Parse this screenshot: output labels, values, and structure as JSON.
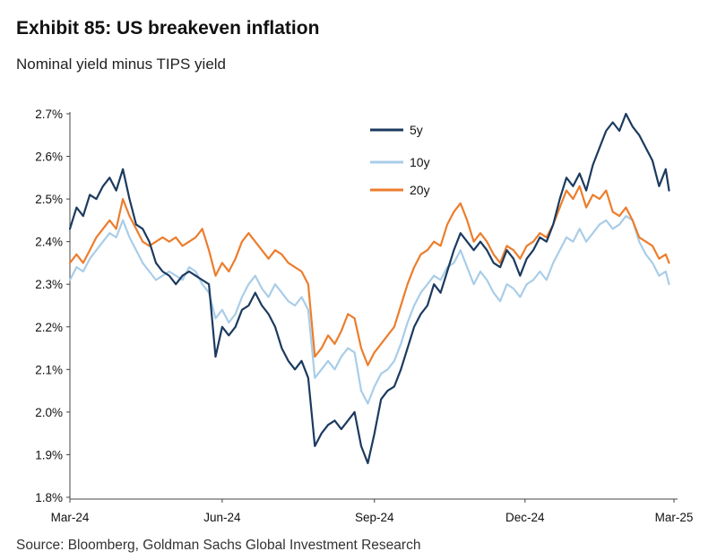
{
  "header": {
    "title": "Exhibit 85: US breakeven inflation",
    "subtitle": "Nominal yield minus TIPS yield"
  },
  "footer": {
    "source": "Source: Bloomberg, Goldman Sachs Global Investment Research"
  },
  "chart_data": {
    "type": "line",
    "title": "Exhibit 85: US breakeven inflation",
    "subtitle": "Nominal yield minus TIPS yield",
    "xlabel": "",
    "ylabel": "",
    "x_tick_labels": [
      "Mar-24",
      "Jun-24",
      "Sep-24",
      "Dec-24",
      "Mar-25"
    ],
    "y_tick_labels": [
      "1.8%",
      "1.9%",
      "2.0%",
      "2.1%",
      "2.2%",
      "2.3%",
      "2.4%",
      "2.5%",
      "2.6%",
      "2.7%"
    ],
    "ylim": [
      1.8,
      2.7
    ],
    "xlim": [
      "2024-03-01",
      "2025-03-01"
    ],
    "grid": false,
    "legend_position": "top-center",
    "colors": {
      "5y": "#1b3a5f",
      "10y": "#a9cde8",
      "20y": "#ec7d2c"
    },
    "series": [
      {
        "name": "5y",
        "points": [
          [
            "2024-03-01",
            2.43
          ],
          [
            "2024-03-05",
            2.48
          ],
          [
            "2024-03-09",
            2.46
          ],
          [
            "2024-03-13",
            2.51
          ],
          [
            "2024-03-17",
            2.5
          ],
          [
            "2024-03-21",
            2.53
          ],
          [
            "2024-03-25",
            2.55
          ],
          [
            "2024-03-29",
            2.52
          ],
          [
            "2024-04-02",
            2.57
          ],
          [
            "2024-04-06",
            2.5
          ],
          [
            "2024-04-10",
            2.44
          ],
          [
            "2024-04-14",
            2.43
          ],
          [
            "2024-04-18",
            2.4
          ],
          [
            "2024-04-22",
            2.35
          ],
          [
            "2024-04-26",
            2.33
          ],
          [
            "2024-04-30",
            2.32
          ],
          [
            "2024-05-04",
            2.3
          ],
          [
            "2024-05-08",
            2.32
          ],
          [
            "2024-05-12",
            2.33
          ],
          [
            "2024-05-16",
            2.32
          ],
          [
            "2024-05-20",
            2.31
          ],
          [
            "2024-05-24",
            2.3
          ],
          [
            "2024-05-28",
            2.13
          ],
          [
            "2024-06-01",
            2.2
          ],
          [
            "2024-06-05",
            2.18
          ],
          [
            "2024-06-09",
            2.2
          ],
          [
            "2024-06-13",
            2.24
          ],
          [
            "2024-06-17",
            2.25
          ],
          [
            "2024-06-21",
            2.28
          ],
          [
            "2024-06-25",
            2.25
          ],
          [
            "2024-06-29",
            2.23
          ],
          [
            "2024-07-03",
            2.2
          ],
          [
            "2024-07-07",
            2.15
          ],
          [
            "2024-07-11",
            2.12
          ],
          [
            "2024-07-15",
            2.1
          ],
          [
            "2024-07-19",
            2.12
          ],
          [
            "2024-07-23",
            2.08
          ],
          [
            "2024-07-27",
            1.92
          ],
          [
            "2024-07-31",
            1.95
          ],
          [
            "2024-08-04",
            1.97
          ],
          [
            "2024-08-08",
            1.98
          ],
          [
            "2024-08-12",
            1.96
          ],
          [
            "2024-08-16",
            1.98
          ],
          [
            "2024-08-20",
            2.0
          ],
          [
            "2024-08-24",
            1.92
          ],
          [
            "2024-08-28",
            1.88
          ],
          [
            "2024-09-01",
            1.95
          ],
          [
            "2024-09-05",
            2.03
          ],
          [
            "2024-09-09",
            2.05
          ],
          [
            "2024-09-13",
            2.06
          ],
          [
            "2024-09-17",
            2.1
          ],
          [
            "2024-09-21",
            2.15
          ],
          [
            "2024-09-25",
            2.2
          ],
          [
            "2024-09-29",
            2.23
          ],
          [
            "2024-10-03",
            2.25
          ],
          [
            "2024-10-07",
            2.3
          ],
          [
            "2024-10-11",
            2.28
          ],
          [
            "2024-10-15",
            2.33
          ],
          [
            "2024-10-19",
            2.38
          ],
          [
            "2024-10-23",
            2.42
          ],
          [
            "2024-10-27",
            2.4
          ],
          [
            "2024-10-31",
            2.38
          ],
          [
            "2024-11-04",
            2.4
          ],
          [
            "2024-11-08",
            2.38
          ],
          [
            "2024-11-12",
            2.35
          ],
          [
            "2024-11-16",
            2.34
          ],
          [
            "2024-11-20",
            2.38
          ],
          [
            "2024-11-24",
            2.36
          ],
          [
            "2024-11-28",
            2.32
          ],
          [
            "2024-12-02",
            2.36
          ],
          [
            "2024-12-06",
            2.38
          ],
          [
            "2024-12-10",
            2.41
          ],
          [
            "2024-12-14",
            2.4
          ],
          [
            "2024-12-18",
            2.44
          ],
          [
            "2024-12-22",
            2.5
          ],
          [
            "2024-12-26",
            2.55
          ],
          [
            "2024-12-30",
            2.53
          ],
          [
            "2025-01-03",
            2.56
          ],
          [
            "2025-01-07",
            2.52
          ],
          [
            "2025-01-11",
            2.58
          ],
          [
            "2025-01-15",
            2.62
          ],
          [
            "2025-01-19",
            2.66
          ],
          [
            "2025-01-23",
            2.68
          ],
          [
            "2025-01-27",
            2.66
          ],
          [
            "2025-01-31",
            2.7
          ],
          [
            "2025-02-04",
            2.67
          ],
          [
            "2025-02-08",
            2.65
          ],
          [
            "2025-02-12",
            2.62
          ],
          [
            "2025-02-16",
            2.59
          ],
          [
            "2025-02-20",
            2.53
          ],
          [
            "2025-02-24",
            2.57
          ],
          [
            "2025-02-26",
            2.52
          ]
        ]
      },
      {
        "name": "10y",
        "points": [
          [
            "2024-03-01",
            2.31
          ],
          [
            "2024-03-05",
            2.34
          ],
          [
            "2024-03-09",
            2.33
          ],
          [
            "2024-03-13",
            2.36
          ],
          [
            "2024-03-17",
            2.38
          ],
          [
            "2024-03-21",
            2.4
          ],
          [
            "2024-03-25",
            2.42
          ],
          [
            "2024-03-29",
            2.41
          ],
          [
            "2024-04-02",
            2.45
          ],
          [
            "2024-04-06",
            2.41
          ],
          [
            "2024-04-10",
            2.38
          ],
          [
            "2024-04-14",
            2.35
          ],
          [
            "2024-04-18",
            2.33
          ],
          [
            "2024-04-22",
            2.31
          ],
          [
            "2024-04-26",
            2.32
          ],
          [
            "2024-04-30",
            2.33
          ],
          [
            "2024-05-04",
            2.32
          ],
          [
            "2024-05-08",
            2.31
          ],
          [
            "2024-05-12",
            2.34
          ],
          [
            "2024-05-16",
            2.33
          ],
          [
            "2024-05-20",
            2.3
          ],
          [
            "2024-05-24",
            2.28
          ],
          [
            "2024-05-28",
            2.22
          ],
          [
            "2024-06-01",
            2.24
          ],
          [
            "2024-06-05",
            2.21
          ],
          [
            "2024-06-09",
            2.23
          ],
          [
            "2024-06-13",
            2.27
          ],
          [
            "2024-06-17",
            2.3
          ],
          [
            "2024-06-21",
            2.32
          ],
          [
            "2024-06-25",
            2.29
          ],
          [
            "2024-06-29",
            2.27
          ],
          [
            "2024-07-03",
            2.3
          ],
          [
            "2024-07-07",
            2.28
          ],
          [
            "2024-07-11",
            2.26
          ],
          [
            "2024-07-15",
            2.25
          ],
          [
            "2024-07-19",
            2.27
          ],
          [
            "2024-07-23",
            2.24
          ],
          [
            "2024-07-27",
            2.08
          ],
          [
            "2024-07-31",
            2.1
          ],
          [
            "2024-08-04",
            2.12
          ],
          [
            "2024-08-08",
            2.1
          ],
          [
            "2024-08-12",
            2.13
          ],
          [
            "2024-08-16",
            2.15
          ],
          [
            "2024-08-20",
            2.14
          ],
          [
            "2024-08-24",
            2.05
          ],
          [
            "2024-08-28",
            2.02
          ],
          [
            "2024-09-01",
            2.06
          ],
          [
            "2024-09-05",
            2.09
          ],
          [
            "2024-09-09",
            2.1
          ],
          [
            "2024-09-13",
            2.12
          ],
          [
            "2024-09-17",
            2.16
          ],
          [
            "2024-09-21",
            2.21
          ],
          [
            "2024-09-25",
            2.25
          ],
          [
            "2024-09-29",
            2.28
          ],
          [
            "2024-10-03",
            2.3
          ],
          [
            "2024-10-07",
            2.32
          ],
          [
            "2024-10-11",
            2.31
          ],
          [
            "2024-10-15",
            2.34
          ],
          [
            "2024-10-19",
            2.35
          ],
          [
            "2024-10-23",
            2.38
          ],
          [
            "2024-10-27",
            2.34
          ],
          [
            "2024-10-31",
            2.3
          ],
          [
            "2024-11-04",
            2.33
          ],
          [
            "2024-11-08",
            2.31
          ],
          [
            "2024-11-12",
            2.28
          ],
          [
            "2024-11-16",
            2.26
          ],
          [
            "2024-11-20",
            2.3
          ],
          [
            "2024-11-24",
            2.29
          ],
          [
            "2024-11-28",
            2.27
          ],
          [
            "2024-12-02",
            2.3
          ],
          [
            "2024-12-06",
            2.31
          ],
          [
            "2024-12-10",
            2.33
          ],
          [
            "2024-12-14",
            2.31
          ],
          [
            "2024-12-18",
            2.35
          ],
          [
            "2024-12-22",
            2.38
          ],
          [
            "2024-12-26",
            2.41
          ],
          [
            "2024-12-30",
            2.4
          ],
          [
            "2025-01-03",
            2.43
          ],
          [
            "2025-01-07",
            2.4
          ],
          [
            "2025-01-11",
            2.42
          ],
          [
            "2025-01-15",
            2.44
          ],
          [
            "2025-01-19",
            2.45
          ],
          [
            "2025-01-23",
            2.43
          ],
          [
            "2025-01-27",
            2.44
          ],
          [
            "2025-01-31",
            2.46
          ],
          [
            "2025-02-04",
            2.45
          ],
          [
            "2025-02-08",
            2.4
          ],
          [
            "2025-02-12",
            2.37
          ],
          [
            "2025-02-16",
            2.35
          ],
          [
            "2025-02-20",
            2.32
          ],
          [
            "2025-02-24",
            2.33
          ],
          [
            "2025-02-26",
            2.3
          ]
        ]
      },
      {
        "name": "20y",
        "points": [
          [
            "2024-03-01",
            2.35
          ],
          [
            "2024-03-05",
            2.37
          ],
          [
            "2024-03-09",
            2.35
          ],
          [
            "2024-03-13",
            2.38
          ],
          [
            "2024-03-17",
            2.41
          ],
          [
            "2024-03-21",
            2.43
          ],
          [
            "2024-03-25",
            2.45
          ],
          [
            "2024-03-29",
            2.43
          ],
          [
            "2024-04-02",
            2.5
          ],
          [
            "2024-04-06",
            2.46
          ],
          [
            "2024-04-10",
            2.43
          ],
          [
            "2024-04-14",
            2.4
          ],
          [
            "2024-04-18",
            2.39
          ],
          [
            "2024-04-22",
            2.4
          ],
          [
            "2024-04-26",
            2.41
          ],
          [
            "2024-04-30",
            2.4
          ],
          [
            "2024-05-04",
            2.41
          ],
          [
            "2024-05-08",
            2.39
          ],
          [
            "2024-05-12",
            2.4
          ],
          [
            "2024-05-16",
            2.41
          ],
          [
            "2024-05-20",
            2.43
          ],
          [
            "2024-05-24",
            2.38
          ],
          [
            "2024-05-28",
            2.32
          ],
          [
            "2024-06-01",
            2.35
          ],
          [
            "2024-06-05",
            2.33
          ],
          [
            "2024-06-09",
            2.36
          ],
          [
            "2024-06-13",
            2.4
          ],
          [
            "2024-06-17",
            2.42
          ],
          [
            "2024-06-21",
            2.4
          ],
          [
            "2024-06-25",
            2.38
          ],
          [
            "2024-06-29",
            2.36
          ],
          [
            "2024-07-03",
            2.38
          ],
          [
            "2024-07-07",
            2.37
          ],
          [
            "2024-07-11",
            2.35
          ],
          [
            "2024-07-15",
            2.34
          ],
          [
            "2024-07-19",
            2.33
          ],
          [
            "2024-07-23",
            2.3
          ],
          [
            "2024-07-27",
            2.13
          ],
          [
            "2024-07-31",
            2.15
          ],
          [
            "2024-08-04",
            2.18
          ],
          [
            "2024-08-08",
            2.16
          ],
          [
            "2024-08-12",
            2.19
          ],
          [
            "2024-08-16",
            2.23
          ],
          [
            "2024-08-20",
            2.22
          ],
          [
            "2024-08-24",
            2.15
          ],
          [
            "2024-08-28",
            2.11
          ],
          [
            "2024-09-01",
            2.14
          ],
          [
            "2024-09-05",
            2.16
          ],
          [
            "2024-09-09",
            2.18
          ],
          [
            "2024-09-13",
            2.2
          ],
          [
            "2024-09-17",
            2.25
          ],
          [
            "2024-09-21",
            2.3
          ],
          [
            "2024-09-25",
            2.34
          ],
          [
            "2024-09-29",
            2.37
          ],
          [
            "2024-10-03",
            2.38
          ],
          [
            "2024-10-07",
            2.4
          ],
          [
            "2024-10-11",
            2.39
          ],
          [
            "2024-10-15",
            2.44
          ],
          [
            "2024-10-19",
            2.47
          ],
          [
            "2024-10-23",
            2.49
          ],
          [
            "2024-10-27",
            2.45
          ],
          [
            "2024-10-31",
            2.4
          ],
          [
            "2024-11-04",
            2.42
          ],
          [
            "2024-11-08",
            2.4
          ],
          [
            "2024-11-12",
            2.37
          ],
          [
            "2024-11-16",
            2.35
          ],
          [
            "2024-11-20",
            2.39
          ],
          [
            "2024-11-24",
            2.38
          ],
          [
            "2024-11-28",
            2.36
          ],
          [
            "2024-12-02",
            2.39
          ],
          [
            "2024-12-06",
            2.4
          ],
          [
            "2024-12-10",
            2.42
          ],
          [
            "2024-12-14",
            2.41
          ],
          [
            "2024-12-18",
            2.44
          ],
          [
            "2024-12-22",
            2.48
          ],
          [
            "2024-12-26",
            2.52
          ],
          [
            "2024-12-30",
            2.5
          ],
          [
            "2025-01-03",
            2.53
          ],
          [
            "2025-01-07",
            2.48
          ],
          [
            "2025-01-11",
            2.51
          ],
          [
            "2025-01-15",
            2.5
          ],
          [
            "2025-01-19",
            2.52
          ],
          [
            "2025-01-23",
            2.47
          ],
          [
            "2025-01-27",
            2.46
          ],
          [
            "2025-01-31",
            2.48
          ],
          [
            "2025-02-04",
            2.45
          ],
          [
            "2025-02-08",
            2.41
          ],
          [
            "2025-02-12",
            2.4
          ],
          [
            "2025-02-16",
            2.39
          ],
          [
            "2025-02-20",
            2.36
          ],
          [
            "2025-02-24",
            2.37
          ],
          [
            "2025-02-26",
            2.35
          ]
        ]
      }
    ]
  }
}
